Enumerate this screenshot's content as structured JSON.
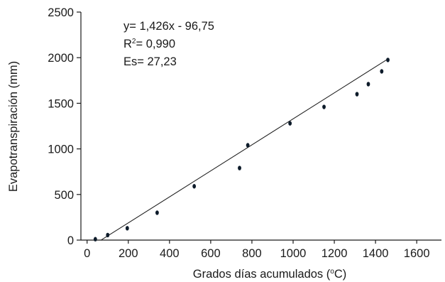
{
  "chart_data": {
    "type": "scatter",
    "xlabel_main": "Grados días acumulados (",
    "xlabel_sup": "o",
    "xlabel_tail": "C)",
    "ylabel": "Evapotranspiración (mm)",
    "x_ticks": [
      "0",
      "200",
      "400",
      "600",
      "800",
      "1000",
      "1200",
      "1400",
      "1600"
    ],
    "y_ticks": [
      "0",
      "500",
      "1000",
      "1500",
      "2000",
      "2500"
    ],
    "xlim": [
      -30,
      1720
    ],
    "ylim": [
      0,
      2500
    ],
    "points": [
      {
        "x": 40,
        "y": 10
      },
      {
        "x": 100,
        "y": 55
      },
      {
        "x": 195,
        "y": 130
      },
      {
        "x": 340,
        "y": 300
      },
      {
        "x": 520,
        "y": 590
      },
      {
        "x": 740,
        "y": 790
      },
      {
        "x": 780,
        "y": 1040
      },
      {
        "x": 985,
        "y": 1280
      },
      {
        "x": 1150,
        "y": 1460
      },
      {
        "x": 1310,
        "y": 1600
      },
      {
        "x": 1365,
        "y": 1710
      },
      {
        "x": 1430,
        "y": 1850
      },
      {
        "x": 1460,
        "y": 1975
      }
    ],
    "regression": {
      "slope": 1.426,
      "intercept": -96.75,
      "x_start": 68,
      "x_end": 1460
    },
    "annotation": {
      "equation": "y= 1,426x - 96,75",
      "r2_prefix": "R",
      "r2_sup": "2",
      "r2_value": "= 0,990",
      "es": "Es= 27,23"
    }
  }
}
